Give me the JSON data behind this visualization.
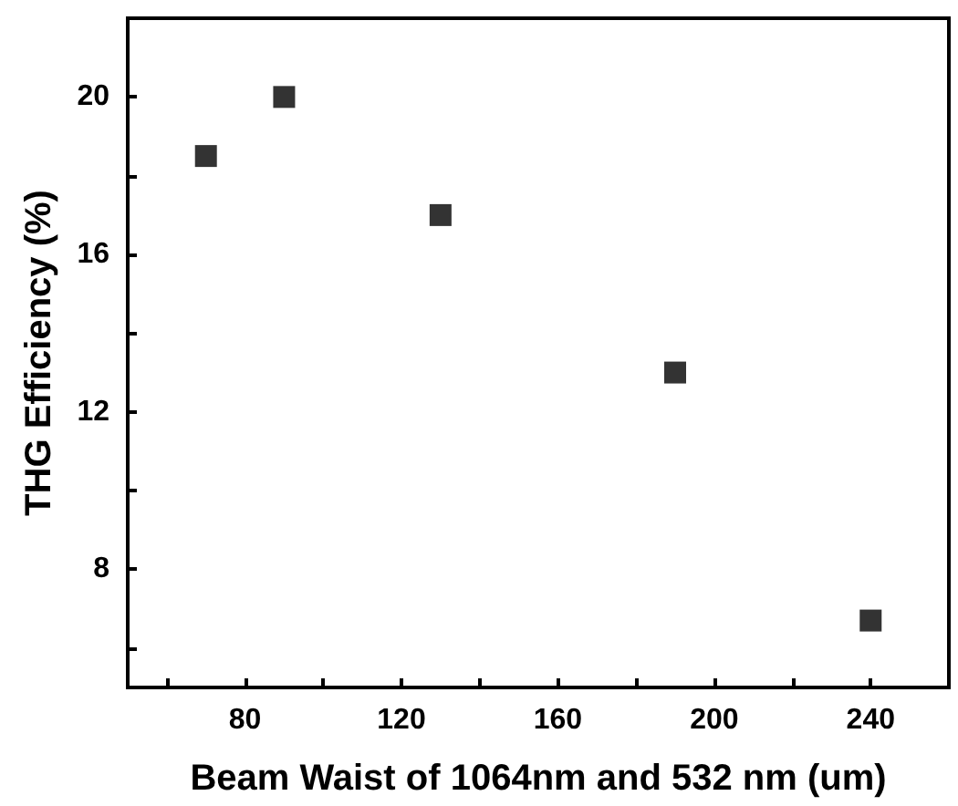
{
  "chart_data": {
    "type": "scatter",
    "xlabel": "Beam Waist of 1064nm and 532 nm (um)",
    "ylabel": "THG Efficiency (%)",
    "x": [
      70,
      90,
      130,
      190,
      240
    ],
    "values": [
      18.5,
      20,
      17,
      13,
      6.7
    ],
    "color": "#000000",
    "marker": "square",
    "grid": false,
    "xlim": [
      50,
      260
    ],
    "xticks": [
      {
        "value": 60,
        "label": null
      },
      80,
      {
        "value": 100,
        "label": null
      },
      120,
      {
        "value": 140,
        "label": null
      },
      160,
      {
        "value": 180,
        "label": null
      },
      200,
      {
        "value": 220,
        "label": null
      },
      240
    ],
    "ylim": [
      5,
      22
    ],
    "yticks": [
      {
        "value": 6,
        "label": null
      },
      8,
      {
        "value": 10,
        "label": null
      },
      12,
      {
        "value": 14,
        "label": null
      },
      16,
      {
        "value": 18,
        "label": null
      },
      20
    ]
  }
}
